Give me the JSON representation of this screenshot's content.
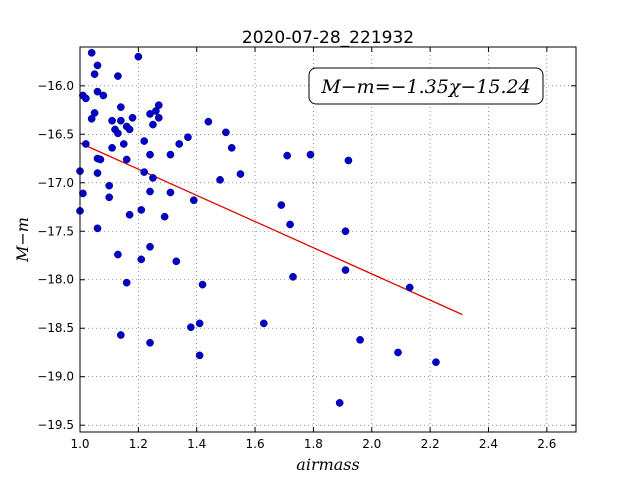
{
  "chart_data": {
    "type": "scatter",
    "title": "2020-07-28_221932",
    "xlabel": "airmass",
    "ylabel": "M−m",
    "xlim": [
      1.0,
      2.7
    ],
    "ylim": [
      -19.57,
      -15.6
    ],
    "xticks": [
      1.0,
      1.2,
      1.4,
      1.6,
      1.8,
      2.0,
      2.2,
      2.4,
      2.6
    ],
    "xtick_labels": [
      "1.0",
      "1.2",
      "1.4",
      "1.6",
      "1.8",
      "2.0",
      "2.2",
      "2.4",
      "2.6"
    ],
    "yticks": [
      -16.0,
      -16.5,
      -17.0,
      -17.5,
      -18.0,
      -18.5,
      -19.0,
      -19.5
    ],
    "ytick_labels": [
      "−16.0",
      "−16.5",
      "−17.0",
      "−17.5",
      "−18.0",
      "−18.5",
      "−19.0",
      "−19.5"
    ],
    "grid": true,
    "annotation": "M−m=−1.35χ−15.24",
    "marker_color": "#0000cc",
    "fit_color": "#dd0000",
    "fit": {
      "slope": -1.35,
      "intercept": -15.24,
      "x_range": [
        1.0,
        2.31
      ]
    },
    "points": [
      [
        1.04,
        -15.66
      ],
      [
        1.2,
        -15.7
      ],
      [
        1.06,
        -15.79
      ],
      [
        1.05,
        -15.88
      ],
      [
        1.13,
        -15.9
      ],
      [
        1.06,
        -16.06
      ],
      [
        1.01,
        -16.1
      ],
      [
        1.02,
        -16.13
      ],
      [
        1.08,
        -16.1
      ],
      [
        1.27,
        -16.2
      ],
      [
        1.14,
        -16.22
      ],
      [
        1.26,
        -16.26
      ],
      [
        1.24,
        -16.29
      ],
      [
        1.05,
        -16.28
      ],
      [
        1.04,
        -16.34
      ],
      [
        1.11,
        -16.36
      ],
      [
        1.14,
        -16.36
      ],
      [
        1.18,
        -16.33
      ],
      [
        1.27,
        -16.33
      ],
      [
        1.44,
        -16.37
      ],
      [
        1.25,
        -16.4
      ],
      [
        1.16,
        -16.42
      ],
      [
        1.12,
        -16.45
      ],
      [
        1.17,
        -16.45
      ],
      [
        1.13,
        -16.49
      ],
      [
        1.5,
        -16.48
      ],
      [
        1.37,
        -16.53
      ],
      [
        1.22,
        -16.57
      ],
      [
        1.15,
        -16.6
      ],
      [
        1.02,
        -16.6
      ],
      [
        1.34,
        -16.6
      ],
      [
        1.11,
        -16.64
      ],
      [
        1.52,
        -16.64
      ],
      [
        1.24,
        -16.71
      ],
      [
        1.31,
        -16.71
      ],
      [
        1.71,
        -16.72
      ],
      [
        1.79,
        -16.71
      ],
      [
        1.06,
        -16.75
      ],
      [
        1.07,
        -16.76
      ],
      [
        1.16,
        -16.76
      ],
      [
        1.92,
        -16.77
      ],
      [
        1.0,
        -16.88
      ],
      [
        1.22,
        -16.89
      ],
      [
        1.06,
        -16.9
      ],
      [
        1.25,
        -16.95
      ],
      [
        1.55,
        -16.91
      ],
      [
        1.48,
        -16.97
      ],
      [
        1.1,
        -17.03
      ],
      [
        1.24,
        -17.09
      ],
      [
        1.31,
        -17.1
      ],
      [
        1.01,
        -17.11
      ],
      [
        1.1,
        -17.15
      ],
      [
        1.39,
        -17.18
      ],
      [
        1.69,
        -17.23
      ],
      [
        1.0,
        -17.29
      ],
      [
        1.21,
        -17.28
      ],
      [
        1.17,
        -17.33
      ],
      [
        1.29,
        -17.35
      ],
      [
        1.72,
        -17.43
      ],
      [
        1.06,
        -17.47
      ],
      [
        1.91,
        -17.5
      ],
      [
        1.24,
        -17.66
      ],
      [
        1.13,
        -17.74
      ],
      [
        1.21,
        -17.79
      ],
      [
        1.33,
        -17.81
      ],
      [
        1.91,
        -17.9
      ],
      [
        1.73,
        -17.97
      ],
      [
        1.16,
        -18.03
      ],
      [
        1.42,
        -18.05
      ],
      [
        2.13,
        -18.08
      ],
      [
        1.63,
        -18.45
      ],
      [
        1.41,
        -18.45
      ],
      [
        1.38,
        -18.49
      ],
      [
        1.14,
        -18.57
      ],
      [
        1.96,
        -18.62
      ],
      [
        1.24,
        -18.65
      ],
      [
        2.09,
        -18.75
      ],
      [
        1.41,
        -18.78
      ],
      [
        2.22,
        -18.85
      ],
      [
        1.89,
        -19.27
      ]
    ]
  }
}
